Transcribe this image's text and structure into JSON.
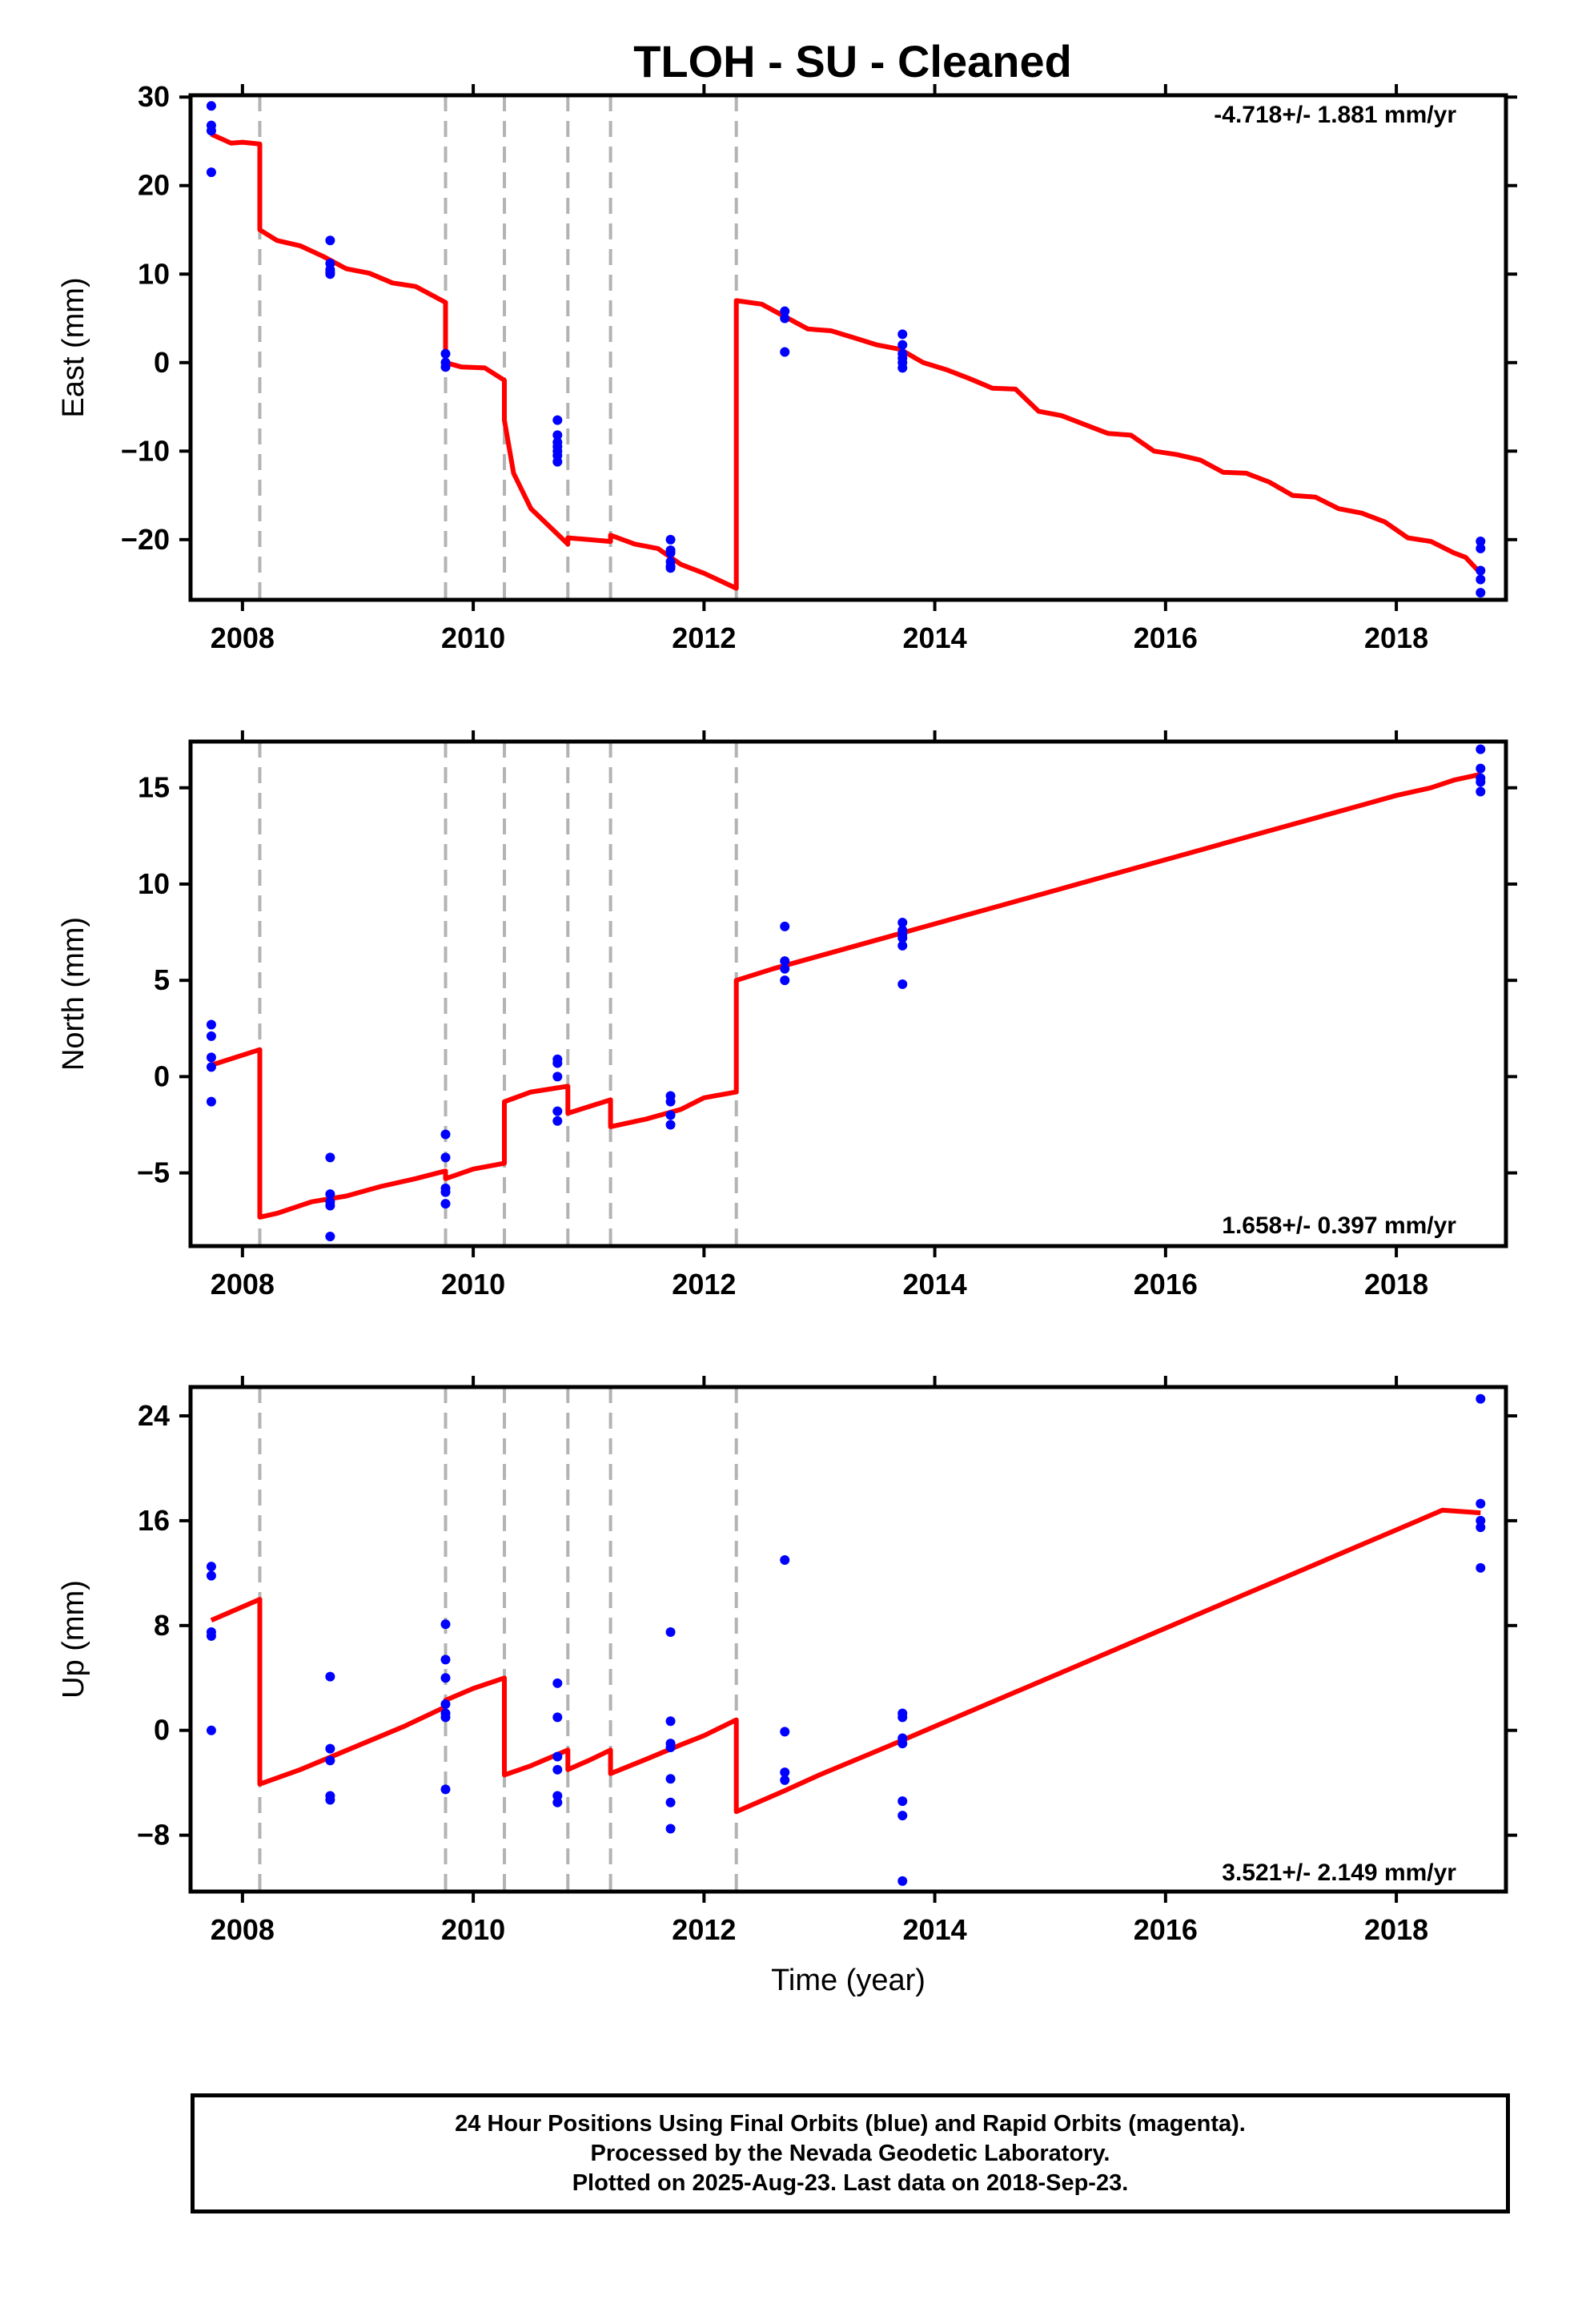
{
  "title": "TLOH  - SU - Cleaned",
  "footer": {
    "line1": "24 Hour Positions Using Final Orbits (blue) and Rapid Orbits (magenta).",
    "line2": "Processed by the Nevada Geodetic Laboratory.",
    "line3": "Plotted on 2025-Aug-23. Last data on 2018-Sep-23."
  },
  "colors": {
    "data": "#0000ff",
    "model": "#ff0000",
    "offset_lines": "#b3b3b3",
    "axes": "#000000"
  },
  "chart_data": [
    {
      "type": "scatter",
      "panel": "east",
      "ylabel": "East (mm)",
      "xlabel": "",
      "rate_label": "-4.718+/- 1.881 mm/yr",
      "xlim": [
        2007.55,
        2018.95
      ],
      "ylim": [
        -26.8,
        30.2
      ],
      "yticks": [
        30,
        20,
        10,
        0,
        -10,
        -20
      ],
      "ytick_labels": [
        "30",
        "20",
        "10",
        "0",
        "−10",
        "−20"
      ],
      "xticks": [
        2008,
        2010,
        2012,
        2014,
        2016,
        2018
      ],
      "xtick_labels": [
        "2008",
        "2010",
        "2012",
        "2014",
        "2016",
        "2018"
      ],
      "offsets": [
        2008.15,
        2009.76,
        2010.27,
        2010.82,
        2011.19,
        2012.28
      ],
      "points": {
        "x": [
          2007.73,
          2007.73,
          2007.73,
          2007.73,
          2008.76,
          2008.76,
          2008.76,
          2008.76,
          2008.76,
          2009.76,
          2009.76,
          2009.76,
          2010.73,
          2010.73,
          2010.73,
          2010.73,
          2010.73,
          2010.73,
          2010.73,
          2011.71,
          2011.71,
          2011.71,
          2011.71,
          2011.71,
          2011.71,
          2012.7,
          2012.7,
          2012.7,
          2013.72,
          2013.72,
          2013.72,
          2013.72,
          2013.72,
          2013.72,
          2018.73,
          2018.73,
          2018.73,
          2018.73,
          2018.73
        ],
        "y": [
          29.0,
          26.8,
          26.2,
          21.5,
          13.8,
          11.2,
          10.5,
          10.0,
          10.2,
          1.0,
          0.0,
          -0.5,
          -6.5,
          -8.2,
          -9.0,
          -9.5,
          -10.0,
          -10.5,
          -11.2,
          -20.0,
          -21.2,
          -21.5,
          -22.5,
          -23.0,
          -23.2,
          5.8,
          5.0,
          1.2,
          3.2,
          2.0,
          1.0,
          0.5,
          0.0,
          -0.6,
          -20.2,
          -21.0,
          -23.5,
          -24.5,
          -26.0
        ]
      },
      "model": {
        "x": [
          2007.73,
          2007.9,
          2008.0,
          2008.15,
          2008.15,
          2008.3,
          2008.5,
          2008.7,
          2008.9,
          2009.1,
          2009.3,
          2009.5,
          2009.76,
          2009.76,
          2009.9,
          2010.1,
          2010.27,
          2010.27,
          2010.35,
          2010.5,
          2010.7,
          2010.82,
          2010.82,
          2011.0,
          2011.19,
          2011.19,
          2011.4,
          2011.6,
          2011.8,
          2012.0,
          2012.28,
          2012.28,
          2012.5,
          2012.7,
          2012.9,
          2013.1,
          2013.3,
          2013.5,
          2013.7,
          2013.9,
          2014.1,
          2014.3,
          2014.5,
          2014.7,
          2014.9,
          2015.1,
          2015.3,
          2015.5,
          2015.7,
          2015.9,
          2016.1,
          2016.3,
          2016.5,
          2016.7,
          2016.9,
          2017.1,
          2017.3,
          2017.5,
          2017.7,
          2017.9,
          2018.1,
          2018.3,
          2018.5,
          2018.6,
          2018.73
        ],
        "y": [
          25.8,
          24.8,
          24.9,
          24.7,
          15.0,
          13.8,
          13.2,
          12.0,
          10.6,
          10.1,
          9.0,
          8.6,
          6.8,
          0.0,
          -0.5,
          -0.6,
          -2.0,
          -6.5,
          -12.5,
          -16.5,
          -19.0,
          -20.5,
          -19.8,
          -20.0,
          -20.2,
          -19.5,
          -20.5,
          -21.0,
          -22.8,
          -23.8,
          -25.5,
          7.0,
          6.6,
          5.2,
          3.8,
          3.6,
          2.8,
          2.0,
          1.5,
          0.0,
          -0.8,
          -1.8,
          -2.9,
          -3.0,
          -5.5,
          -6.0,
          -7.0,
          -8.0,
          -8.2,
          -10.0,
          -10.4,
          -11.0,
          -12.4,
          -12.5,
          -13.5,
          -15.0,
          -15.2,
          -16.5,
          -17.0,
          -18.0,
          -19.8,
          -20.2,
          -21.5,
          -22.0,
          -23.8
        ]
      }
    },
    {
      "type": "scatter",
      "panel": "north",
      "ylabel": "North (mm)",
      "xlabel": "",
      "rate_label": "1.658+/- 0.397 mm/yr",
      "xlim": [
        2007.55,
        2018.95
      ],
      "ylim": [
        -8.8,
        17.4
      ],
      "yticks": [
        15,
        10,
        5,
        0,
        -5
      ],
      "ytick_labels": [
        "15",
        "10",
        "5",
        "0",
        "−5"
      ],
      "xticks": [
        2008,
        2010,
        2012,
        2014,
        2016,
        2018
      ],
      "xtick_labels": [
        "2008",
        "2010",
        "2012",
        "2014",
        "2016",
        "2018"
      ],
      "offsets": [
        2008.15,
        2009.76,
        2010.27,
        2010.82,
        2011.19,
        2012.28
      ],
      "points": {
        "x": [
          2007.73,
          2007.73,
          2007.73,
          2007.73,
          2007.73,
          2008.76,
          2008.76,
          2008.76,
          2008.76,
          2008.76,
          2009.76,
          2009.76,
          2009.76,
          2009.76,
          2009.76,
          2010.73,
          2010.73,
          2010.73,
          2010.73,
          2010.73,
          2011.71,
          2011.71,
          2011.71,
          2011.71,
          2012.7,
          2012.7,
          2012.7,
          2012.7,
          2013.72,
          2013.72,
          2013.72,
          2013.72,
          2013.72,
          2013.72,
          2018.73,
          2018.73,
          2018.73,
          2018.73,
          2018.73
        ],
        "y": [
          2.7,
          2.1,
          1.0,
          0.5,
          -1.3,
          -4.2,
          -6.1,
          -6.5,
          -6.7,
          -8.3,
          -3.0,
          -4.2,
          -5.8,
          -6.0,
          -6.6,
          0.9,
          0.7,
          0.0,
          -1.8,
          -2.3,
          -1.0,
          -1.3,
          -2.0,
          -2.5,
          7.8,
          6.0,
          5.6,
          5.0,
          8.0,
          7.6,
          7.4,
          7.2,
          6.8,
          4.8,
          17.0,
          16.0,
          15.5,
          15.3,
          14.8
        ]
      },
      "model": {
        "x": [
          2007.73,
          2008.15,
          2008.15,
          2008.3,
          2008.6,
          2008.9,
          2009.2,
          2009.5,
          2009.76,
          2009.76,
          2010.0,
          2010.27,
          2010.27,
          2010.5,
          2010.82,
          2010.82,
          2011.19,
          2011.19,
          2011.5,
          2011.8,
          2012.0,
          2012.28,
          2012.28,
          2012.6,
          2012.9,
          2013.2,
          2013.5,
          2013.8,
          2014.1,
          2014.4,
          2014.7,
          2015.0,
          2015.3,
          2015.6,
          2015.9,
          2016.2,
          2016.5,
          2016.8,
          2017.1,
          2017.4,
          2017.7,
          2018.0,
          2018.3,
          2018.5,
          2018.73
        ],
        "y": [
          0.6,
          1.4,
          -7.3,
          -7.1,
          -6.5,
          -6.2,
          -5.7,
          -5.3,
          -4.9,
          -5.3,
          -4.8,
          -4.5,
          -1.3,
          -0.8,
          -0.5,
          -1.9,
          -1.2,
          -2.6,
          -2.2,
          -1.7,
          -1.1,
          -0.8,
          5.0,
          5.6,
          6.1,
          6.6,
          7.1,
          7.6,
          8.1,
          8.6,
          9.1,
          9.6,
          10.1,
          10.6,
          11.1,
          11.6,
          12.1,
          12.6,
          13.1,
          13.6,
          14.1,
          14.6,
          15.0,
          15.4,
          15.7
        ]
      }
    },
    {
      "type": "scatter",
      "panel": "up",
      "ylabel": "Up (mm)",
      "xlabel": "Time (year)",
      "rate_label": "3.521+/- 2.149 mm/yr",
      "xlim": [
        2007.55,
        2018.95
      ],
      "ylim": [
        -12.3,
        26.2
      ],
      "yticks": [
        24,
        16,
        8,
        0,
        -8
      ],
      "ytick_labels": [
        "24",
        "16",
        "8",
        "0",
        "−8"
      ],
      "xticks": [
        2008,
        2010,
        2012,
        2014,
        2016,
        2018
      ],
      "xtick_labels": [
        "2008",
        "2010",
        "2012",
        "2014",
        "2016",
        "2018"
      ],
      "offsets": [
        2008.15,
        2009.76,
        2010.27,
        2010.82,
        2011.19,
        2012.28
      ],
      "points": {
        "x": [
          2007.73,
          2007.73,
          2007.73,
          2007.73,
          2007.73,
          2008.76,
          2008.76,
          2008.76,
          2008.76,
          2008.76,
          2009.76,
          2009.76,
          2009.76,
          2009.76,
          2009.76,
          2009.76,
          2009.76,
          2010.73,
          2010.73,
          2010.73,
          2010.73,
          2010.73,
          2010.73,
          2011.71,
          2011.71,
          2011.71,
          2011.71,
          2011.71,
          2011.71,
          2011.71,
          2012.7,
          2012.7,
          2012.7,
          2012.7,
          2013.72,
          2013.72,
          2013.72,
          2013.72,
          2013.72,
          2013.72,
          2013.72,
          2018.73,
          2018.73,
          2018.73,
          2018.73,
          2018.73
        ],
        "y": [
          12.5,
          11.8,
          7.5,
          7.2,
          0.0,
          4.1,
          -1.4,
          -2.3,
          -5.0,
          -5.3,
          8.1,
          5.4,
          4.0,
          1.3,
          1.0,
          2.0,
          -4.5,
          3.6,
          1.0,
          -2.0,
          -3.0,
          -5.0,
          -5.5,
          7.5,
          0.7,
          -1.0,
          -1.3,
          -3.7,
          -5.5,
          -7.5,
          13.0,
          -0.1,
          -3.2,
          -3.8,
          1.3,
          1.0,
          -0.6,
          -1.0,
          -5.4,
          -6.5,
          -11.5,
          25.3,
          17.3,
          16.0,
          15.5,
          12.4
        ]
      },
      "model": {
        "x": [
          2007.73,
          2008.15,
          2008.15,
          2008.5,
          2008.8,
          2009.1,
          2009.4,
          2009.76,
          2009.76,
          2010.0,
          2010.27,
          2010.27,
          2010.5,
          2010.82,
          2010.82,
          2011.0,
          2011.19,
          2011.19,
          2011.5,
          2011.8,
          2012.0,
          2012.28,
          2012.28,
          2012.7,
          2013.0,
          2013.3,
          2013.6,
          2014.0,
          2014.4,
          2014.8,
          2015.2,
          2015.6,
          2016.0,
          2016.4,
          2016.8,
          2017.2,
          2017.6,
          2018.0,
          2018.4,
          2018.73
        ],
        "y": [
          8.4,
          10.0,
          -4.1,
          -3.0,
          -1.9,
          -0.8,
          0.3,
          1.8,
          2.3,
          3.2,
          4.0,
          -3.4,
          -2.7,
          -1.5,
          -3.0,
          -2.3,
          -1.5,
          -3.3,
          -2.2,
          -1.1,
          -0.4,
          0.8,
          -6.2,
          -4.6,
          -3.4,
          -2.3,
          -1.2,
          0.3,
          1.8,
          3.3,
          4.8,
          6.3,
          7.8,
          9.3,
          10.8,
          12.3,
          13.8,
          15.3,
          16.8,
          16.6
        ]
      }
    }
  ]
}
